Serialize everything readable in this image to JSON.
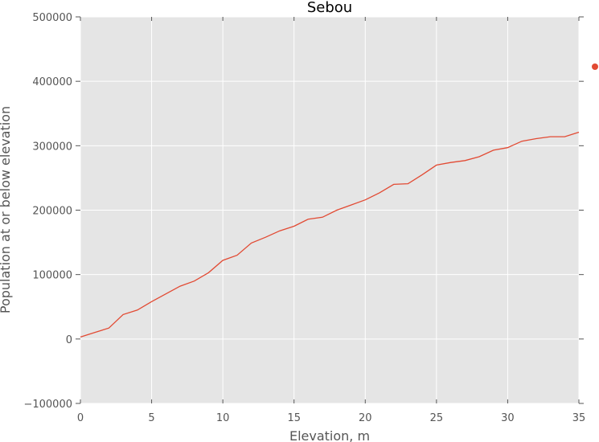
{
  "chart_data": {
    "type": "line",
    "title": "Sebou",
    "xlabel": "Elevation, m",
    "ylabel": "Population at or below elevation",
    "xlim": [
      0,
      35
    ],
    "ylim": [
      -100000,
      500000
    ],
    "xticks": [
      0,
      5,
      10,
      15,
      20,
      25,
      30,
      35
    ],
    "yticks": [
      -100000,
      0,
      100000,
      200000,
      300000,
      400000,
      500000
    ],
    "grid": true,
    "legend": "right",
    "colors": {
      "background": "#e5e5e5",
      "grid": "#ffffff",
      "line": "#e24a33"
    },
    "series": [
      {
        "x": [
          0,
          1,
          2,
          3,
          4,
          5,
          6,
          7,
          8,
          9,
          10,
          11,
          12,
          13,
          14,
          15,
          16,
          17,
          18,
          19,
          20,
          21,
          22,
          23,
          24,
          25,
          26,
          27,
          28,
          29,
          30,
          31,
          32,
          33,
          34,
          35
        ],
        "values": [
          3000,
          10000,
          17000,
          38000,
          45000,
          58000,
          70000,
          82000,
          90000,
          103000,
          122000,
          130000,
          149000,
          158000,
          168000,
          175000,
          186000,
          189000,
          200000,
          208000,
          216000,
          227000,
          240000,
          241000,
          255000,
          270000,
          274000,
          277000,
          283000,
          293000,
          297000,
          307000,
          311000,
          314000,
          314000,
          321000
        ]
      }
    ]
  }
}
